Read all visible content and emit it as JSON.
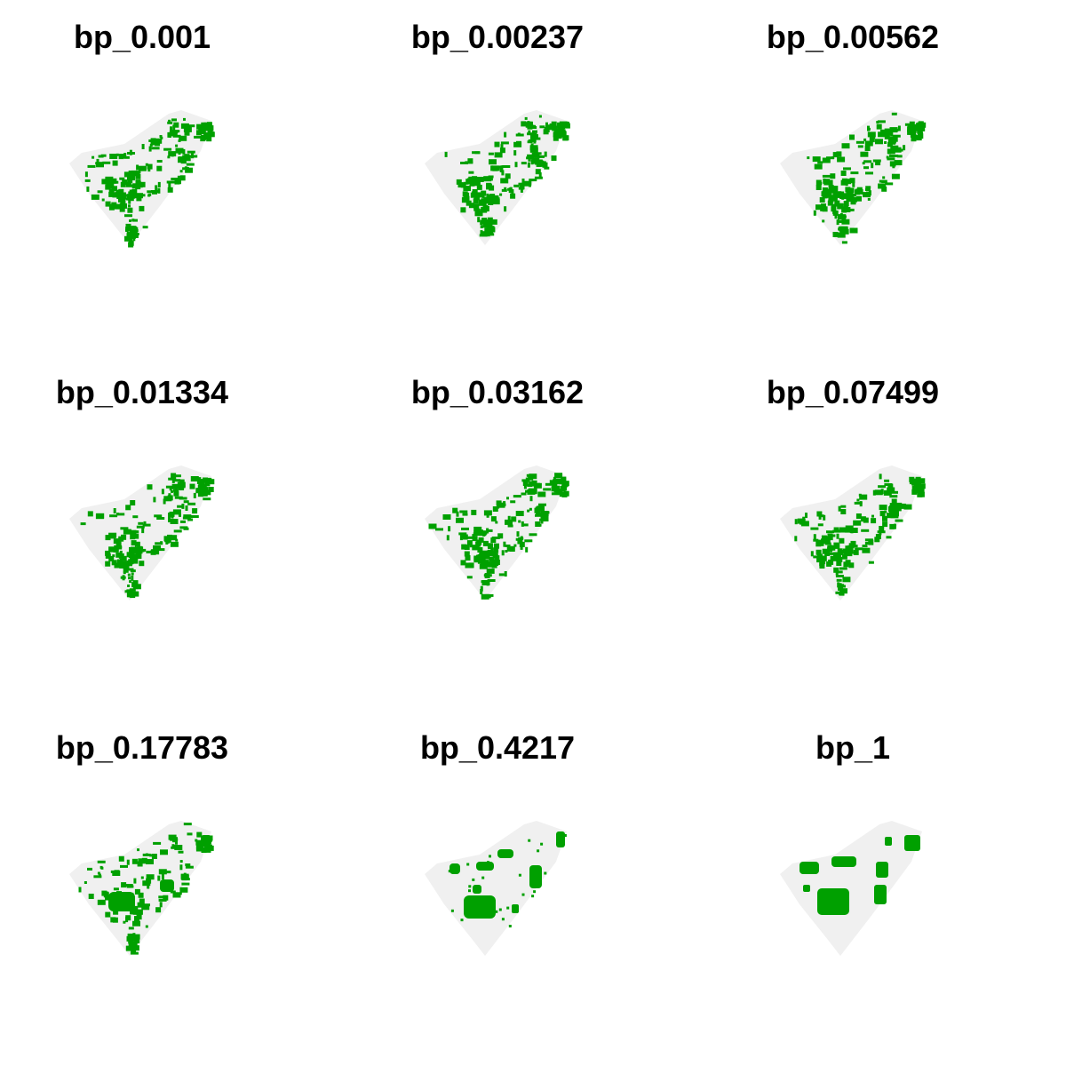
{
  "colors": {
    "background": "#ffffff",
    "region_fill": "#f0f0f0",
    "habitat": "#00a000"
  },
  "panels": [
    {
      "title": "bp_0.001"
    },
    {
      "title": "bp_0.00237"
    },
    {
      "title": "bp_0.00562"
    },
    {
      "title": "bp_0.01334"
    },
    {
      "title": "bp_0.03162"
    },
    {
      "title": "bp_0.07499"
    },
    {
      "title": "bp_0.17783"
    },
    {
      "title": "bp_0.4217"
    },
    {
      "title": "bp_1"
    }
  ]
}
